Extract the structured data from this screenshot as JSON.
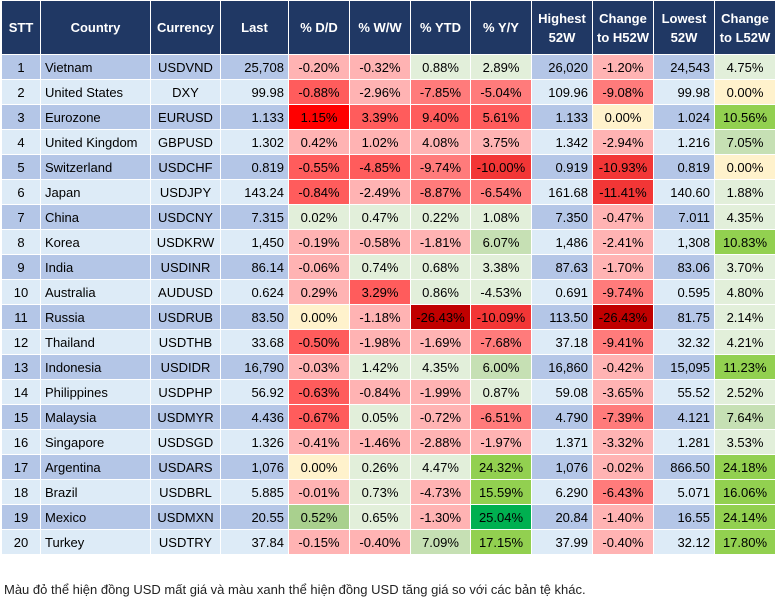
{
  "headers": [
    "STT",
    "Country",
    "Currency",
    "Last",
    "% D/D",
    "% W/W",
    "% YTD",
    "% Y/Y",
    "Highest 52W",
    "Change to H52W",
    "Lowest 52W",
    "Change to L52W"
  ],
  "heat_colors": {
    "p": "#ffb3b3",
    "m": "#ff7b7b",
    "s": "#ff5c5c",
    "r": "#ff0000",
    "R": "#f23636",
    "D": "#c00000",
    "g": "#e2efda",
    "G": "#c6e0b4",
    "A": "#a9d08e",
    "B": "#92d050",
    "E": "#00b050",
    "Y": "#fff2cc"
  },
  "rows": [
    {
      "stt": "1",
      "country": "Vietnam",
      "currency": "USDVND",
      "last": "25,708",
      "dd": "-0.20%",
      "ww": "-0.32%",
      "ytd": "0.88%",
      "yy": "2.89%",
      "high": "26,020",
      "chh": "-1.20%",
      "low": "24,543",
      "chl": "4.75%",
      "heat": "ppgg pg"
    },
    {
      "stt": "2",
      "country": "United States",
      "currency": "DXY",
      "last": "99.98",
      "dd": "-0.88%",
      "ww": "-2.96%",
      "ytd": "-7.85%",
      "yy": "-5.04%",
      "high": "109.96",
      "chh": "-9.08%",
      "low": "99.98",
      "chl": "0.00%",
      "heat": "spmm mY"
    },
    {
      "stt": "3",
      "country": "Eurozone",
      "currency": "EURUSD",
      "last": "1.133",
      "dd": "1.15%",
      "ww": "3.39%",
      "ytd": "9.40%",
      "yy": "5.61%",
      "high": "1.133",
      "chh": "0.00%",
      "low": "1.024",
      "chl": "10.56%",
      "heat": "rsss YB"
    },
    {
      "stt": "4",
      "country": "United Kingdom",
      "currency": "GBPUSD",
      "last": "1.302",
      "dd": "0.42%",
      "ww": "1.02%",
      "ytd": "4.08%",
      "yy": "3.75%",
      "high": "1.342",
      "chh": "-2.94%",
      "low": "1.216",
      "chl": "7.05%",
      "heat": "pppp pG"
    },
    {
      "stt": "5",
      "country": "Switzerland",
      "currency": "USDCHF",
      "last": "0.819",
      "dd": "-0.55%",
      "ww": "-4.85%",
      "ytd": "-9.74%",
      "yy": "-10.00%",
      "high": "0.919",
      "chh": "-10.93%",
      "low": "0.819",
      "chl": "0.00%",
      "heat": "ssmR RY"
    },
    {
      "stt": "6",
      "country": "Japan",
      "currency": "USDJPY",
      "last": "143.24",
      "dd": "-0.84%",
      "ww": "-2.49%",
      "ytd": "-8.87%",
      "yy": "-6.54%",
      "high": "161.68",
      "chh": "-11.41%",
      "low": "140.60",
      "chl": "1.88%",
      "heat": "spmm Rg"
    },
    {
      "stt": "7",
      "country": "China",
      "currency": "USDCNY",
      "last": "7.315",
      "dd": "0.02%",
      "ww": "0.47%",
      "ytd": "0.22%",
      "yy": "1.08%",
      "high": "7.350",
      "chh": "-0.47%",
      "low": "7.011",
      "chl": "4.35%",
      "heat": "gggg pg"
    },
    {
      "stt": "8",
      "country": "Korea",
      "currency": "USDKRW",
      "last": "1,450",
      "dd": "-0.19%",
      "ww": "-0.58%",
      "ytd": "-1.81%",
      "yy": "6.07%",
      "high": "1,486",
      "chh": "-2.41%",
      "low": "1,308",
      "chl": "10.83%",
      "heat": "pppG pB"
    },
    {
      "stt": "9",
      "country": "India",
      "currency": "USDINR",
      "last": "86.14",
      "dd": "-0.06%",
      "ww": "0.74%",
      "ytd": "0.68%",
      "yy": "3.38%",
      "high": "87.63",
      "chh": "-1.70%",
      "low": "83.06",
      "chl": "3.70%",
      "heat": "pggg pg"
    },
    {
      "stt": "10",
      "country": "Australia",
      "currency": "AUDUSD",
      "last": "0.624",
      "dd": "0.29%",
      "ww": "3.29%",
      "ytd": "0.86%",
      "yy": "-4.53%",
      "high": "0.691",
      "chh": "-9.74%",
      "low": "0.595",
      "chl": "4.80%",
      "heat": "psgg mg"
    },
    {
      "stt": "11",
      "country": "Russia",
      "currency": "USDRUB",
      "last": "83.50",
      "dd": "0.00%",
      "ww": "-1.18%",
      "ytd": "-26.43%",
      "yy": "-10.09%",
      "high": "113.50",
      "chh": "-26.43%",
      "low": "81.75",
      "chl": "2.14%",
      "heat": "YpDR Dg"
    },
    {
      "stt": "12",
      "country": "Thailand",
      "currency": "USDTHB",
      "last": "33.68",
      "dd": "-0.50%",
      "ww": "-1.98%",
      "ytd": "-1.69%",
      "yy": "-7.68%",
      "high": "37.18",
      "chh": "-9.41%",
      "low": "32.32",
      "chl": "4.21%",
      "heat": "sppm mg"
    },
    {
      "stt": "13",
      "country": "Indonesia",
      "currency": "USDIDR",
      "last": "16,790",
      "dd": "-0.03%",
      "ww": "1.42%",
      "ytd": "4.35%",
      "yy": "6.00%",
      "high": "16,860",
      "chh": "-0.42%",
      "low": "15,095",
      "chl": "11.23%",
      "heat": "pggG pB"
    },
    {
      "stt": "14",
      "country": "Philippines",
      "currency": "USDPHP",
      "last": "56.92",
      "dd": "-0.63%",
      "ww": "-0.84%",
      "ytd": "-1.99%",
      "yy": "0.87%",
      "high": "59.08",
      "chh": "-3.65%",
      "low": "55.52",
      "chl": "2.52%",
      "heat": "sppg pg"
    },
    {
      "stt": "15",
      "country": "Malaysia",
      "currency": "USDMYR",
      "last": "4.436",
      "dd": "-0.67%",
      "ww": "0.05%",
      "ytd": "-0.72%",
      "yy": "-6.51%",
      "high": "4.790",
      "chh": "-7.39%",
      "low": "4.121",
      "chl": "7.64%",
      "heat": "sgpm mG"
    },
    {
      "stt": "16",
      "country": "Singapore",
      "currency": "USDSGD",
      "last": "1.326",
      "dd": "-0.41%",
      "ww": "-1.46%",
      "ytd": "-2.88%",
      "yy": "-1.97%",
      "high": "1.371",
      "chh": "-3.32%",
      "low": "1.281",
      "chl": "3.53%",
      "heat": "pppp pg"
    },
    {
      "stt": "17",
      "country": "Argentina",
      "currency": "USDARS",
      "last": "1,076",
      "dd": "0.00%",
      "ww": "0.26%",
      "ytd": "4.47%",
      "yy": "24.32%",
      "high": "1,076",
      "chh": "-0.02%",
      "low": "866.50",
      "chl": "24.18%",
      "heat": "YggB pB"
    },
    {
      "stt": "18",
      "country": "Brazil",
      "currency": "USDBRL",
      "last": "5.885",
      "dd": "-0.01%",
      "ww": "0.73%",
      "ytd": "-4.73%",
      "yy": "15.59%",
      "high": "6.290",
      "chh": "-6.43%",
      "low": "5.071",
      "chl": "16.06%",
      "heat": "pgpB mB"
    },
    {
      "stt": "19",
      "country": "Mexico",
      "currency": "USDMXN",
      "last": "20.55",
      "dd": "0.52%",
      "ww": "0.65%",
      "ytd": "-1.30%",
      "yy": "25.04%",
      "high": "20.84",
      "chh": "-1.40%",
      "low": "16.55",
      "chl": "24.14%",
      "heat": "AgpE pB"
    },
    {
      "stt": "20",
      "country": "Turkey",
      "currency": "USDTRY",
      "last": "37.84",
      "dd": "-0.15%",
      "ww": "-0.40%",
      "ytd": "7.09%",
      "yy": "17.15%",
      "high": "37.99",
      "chh": "-0.40%",
      "low": "32.12",
      "chl": "17.80%",
      "heat": "ppGB pB"
    }
  ],
  "footnote": "Màu đỏ thể hiện đồng USD mất giá và màu xanh thể hiện đồng USD tăng giá so với các bản tệ khác."
}
